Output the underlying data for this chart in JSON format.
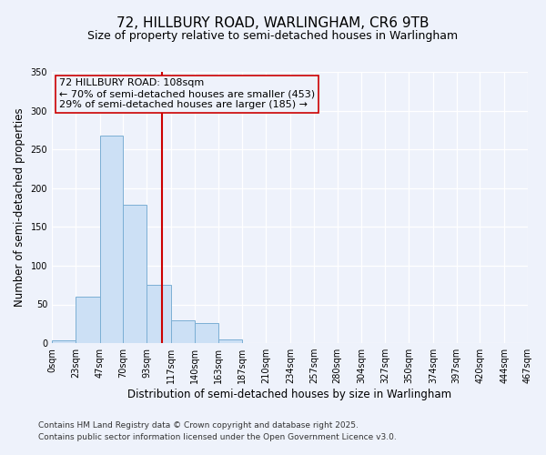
{
  "title": "72, HILLBURY ROAD, WARLINGHAM, CR6 9TB",
  "subtitle": "Size of property relative to semi-detached houses in Warlingham",
  "xlabel": "Distribution of semi-detached houses by size in Warlingham",
  "ylabel": "Number of semi-detached properties",
  "bin_edges": [
    0,
    23,
    47,
    70,
    93,
    117,
    140,
    163,
    187,
    210,
    234,
    257,
    280,
    304,
    327,
    350,
    374,
    397,
    420,
    444,
    467
  ],
  "bin_counts": [
    4,
    60,
    268,
    178,
    75,
    30,
    26,
    5,
    0,
    0,
    0,
    0,
    0,
    0,
    0,
    0,
    0,
    0,
    0,
    0
  ],
  "bar_facecolor": "#cce0f5",
  "bar_edgecolor": "#7bafd4",
  "property_size": 108,
  "vline_color": "#cc0000",
  "annotation_line1": "72 HILLBURY ROAD: 108sqm",
  "annotation_line2": "← 70% of semi-detached houses are smaller (453)",
  "annotation_line3": "29% of semi-detached houses are larger (185) →",
  "annotation_box_edgecolor": "#cc0000",
  "ylim": [
    0,
    350
  ],
  "yticks": [
    0,
    50,
    100,
    150,
    200,
    250,
    300,
    350
  ],
  "tick_labels": [
    "0sqm",
    "23sqm",
    "47sqm",
    "70sqm",
    "93sqm",
    "117sqm",
    "140sqm",
    "163sqm",
    "187sqm",
    "210sqm",
    "234sqm",
    "257sqm",
    "280sqm",
    "304sqm",
    "327sqm",
    "350sqm",
    "374sqm",
    "397sqm",
    "420sqm",
    "444sqm",
    "467sqm"
  ],
  "footer_line1": "Contains HM Land Registry data © Crown copyright and database right 2025.",
  "footer_line2": "Contains public sector information licensed under the Open Government Licence v3.0.",
  "background_color": "#eef2fb",
  "grid_color": "#ffffff",
  "title_fontsize": 11,
  "subtitle_fontsize": 9,
  "axis_label_fontsize": 8.5,
  "tick_fontsize": 7,
  "annotation_fontsize": 8,
  "footer_fontsize": 6.5
}
